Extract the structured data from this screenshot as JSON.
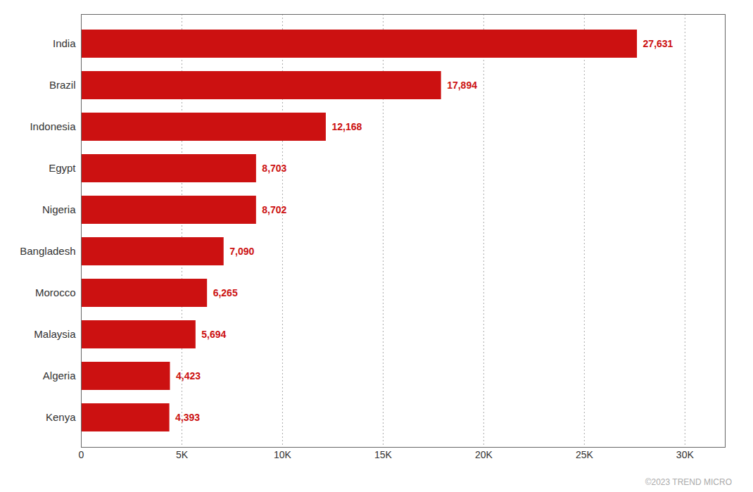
{
  "chart_data": {
    "type": "bar",
    "orientation": "horizontal",
    "categories": [
      "Kenya",
      "Algeria",
      "Malaysia",
      "Morocco",
      "Bangladesh",
      "Nigeria",
      "Egypt",
      "Indonesia",
      "Brazil",
      "India"
    ],
    "values": [
      4393,
      4423,
      5694,
      6265,
      7090,
      8702,
      8703,
      12168,
      17894,
      27631
    ],
    "value_labels": [
      "4,393",
      "4,423",
      "5,694",
      "6,265",
      "7,090",
      "8,702",
      "8,703",
      "12,168",
      "17,894",
      "27,631"
    ],
    "data_labels": true,
    "color": "#cc1111",
    "xlim": [
      0,
      32000
    ],
    "xticks": [
      0,
      {
        "value": 5000,
        "label": "5K"
      },
      {
        "value": 10000,
        "label": "10K"
      },
      {
        "value": 15000,
        "label": "15K"
      },
      {
        "value": 20000,
        "label": "20K"
      },
      {
        "value": 25000,
        "label": "25K"
      },
      {
        "value": 30000,
        "label": "30K"
      }
    ],
    "grid": true,
    "annotations": [
      "©2023 TREND MICRO"
    ]
  }
}
